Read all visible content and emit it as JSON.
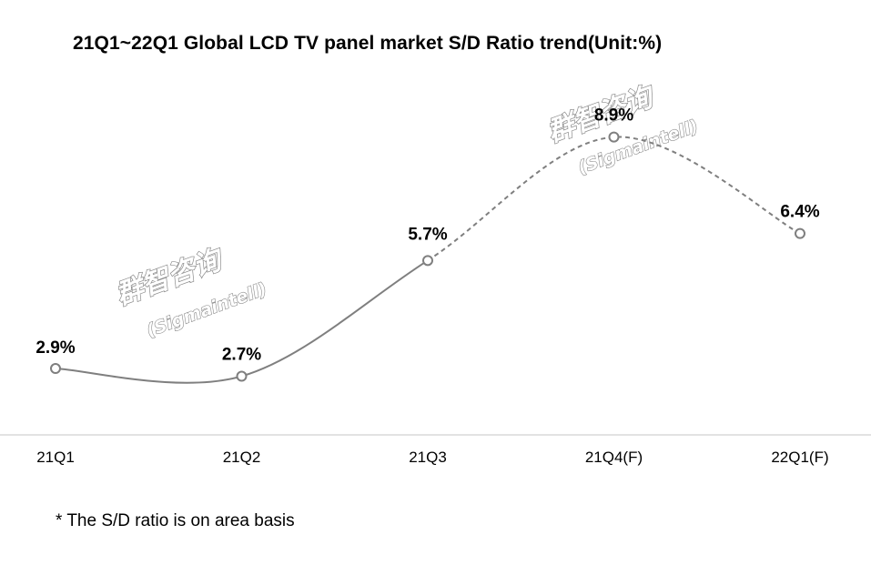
{
  "chart_data": {
    "type": "line",
    "title": "21Q1~22Q1 Global LCD TV panel market S/D Ratio trend(Unit:%)",
    "categories": [
      "21Q1",
      "21Q2",
      "21Q3",
      "21Q4(F)",
      "22Q1(F)"
    ],
    "values": [
      2.9,
      2.7,
      5.7,
      8.9,
      6.4
    ],
    "data_labels": [
      "2.9%",
      "2.7%",
      "5.7%",
      "8.9%",
      "6.4%"
    ],
    "forecast_from_index": 2,
    "unit": "%",
    "ylim": [
      0,
      10
    ],
    "xlabel": "",
    "ylabel": "",
    "grid": false,
    "legend": "none",
    "colors": {
      "line": "#7f7f7f",
      "marker_fill": "#ffffff",
      "axis": "#d9d9d9"
    }
  },
  "watermarks": [
    {
      "cn": "群智咨询",
      "en": "(Sigmaintell)"
    },
    {
      "cn": "群智咨询",
      "en": "(Sigmaintell)"
    }
  ],
  "footnote": "* The S/D ratio is on area basis"
}
